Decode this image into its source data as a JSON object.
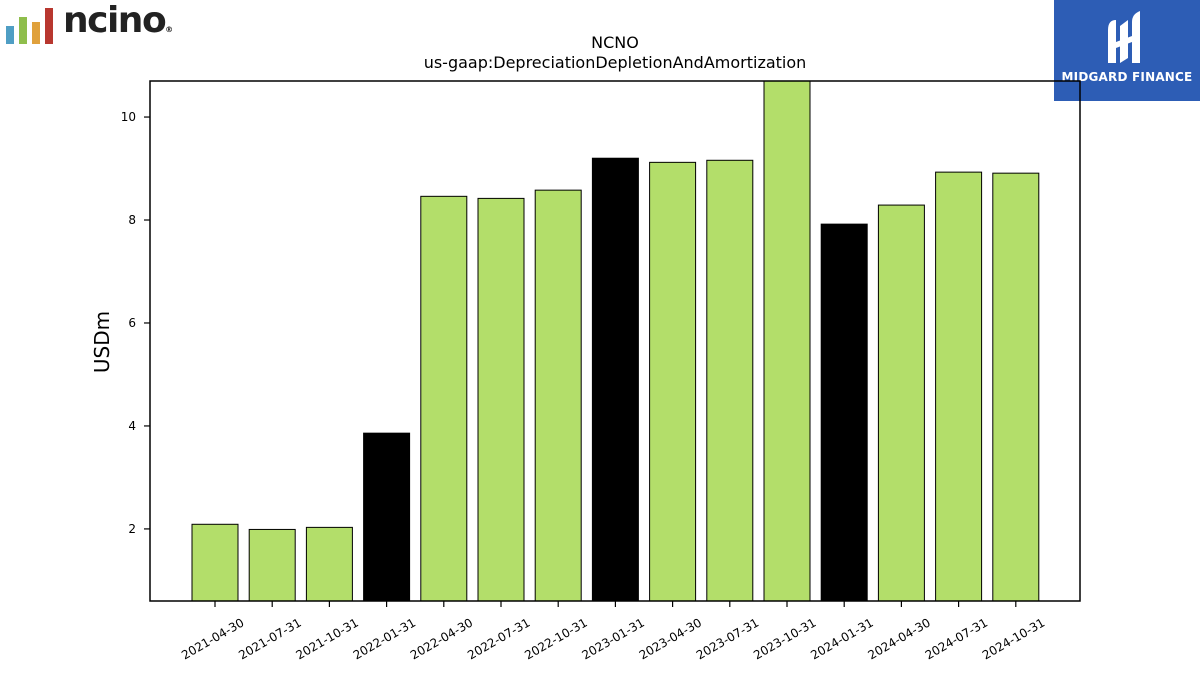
{
  "logos": {
    "left": {
      "text": "ncino",
      "registered": "®"
    },
    "right": {
      "text": "MIDGARD FINANCE",
      "background": "#2d5db5"
    }
  },
  "chart_data": {
    "type": "bar",
    "title": "NCNO",
    "subtitle": "us-gaap:DepreciationDepletionAndAmortization",
    "xlabel": "",
    "ylabel": "USDm",
    "ylim": [
      0.6,
      10.7
    ],
    "yticks": [
      2,
      4,
      6,
      8,
      10
    ],
    "grid": false,
    "categories": [
      "2021-04-30",
      "2021-07-31",
      "2021-10-31",
      "2022-01-31",
      "2022-04-30",
      "2022-07-31",
      "2022-10-31",
      "2023-01-31",
      "2023-04-30",
      "2023-07-31",
      "2023-10-31",
      "2024-01-31",
      "2024-04-30",
      "2024-07-31",
      "2024-10-31"
    ],
    "values": [
      2.09,
      1.99,
      2.03,
      3.86,
      8.46,
      8.42,
      8.58,
      9.2,
      9.12,
      9.16,
      10.75,
      7.92,
      8.29,
      8.93,
      8.91
    ],
    "fiscal_year_end": [
      false,
      false,
      false,
      true,
      false,
      false,
      false,
      true,
      false,
      false,
      false,
      true,
      false,
      false,
      false
    ],
    "colors": {
      "quarter": "#b3de6a",
      "fiscal_year_end": "#000000",
      "edge": "#000000"
    }
  }
}
